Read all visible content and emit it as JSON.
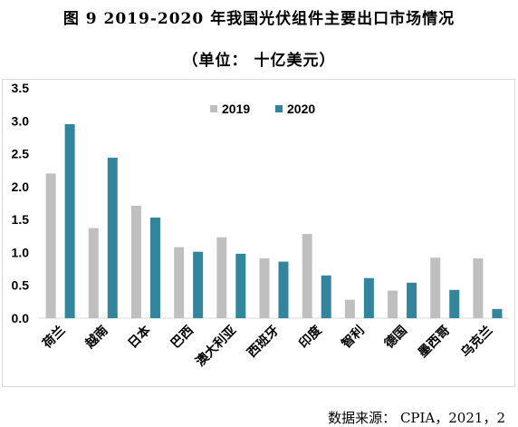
{
  "title": "图 9  2019-2020 年我国光伏组件主要出口市场情况",
  "subtitle": "（单位： 十亿美元）",
  "source": "数据来源： CPIA，2021，2",
  "colors": {
    "s2019": "#bfbfbf",
    "s2020": "#31859c",
    "axis": "#d9d9d9"
  },
  "chart_data": {
    "type": "bar",
    "title": "图 9  2019-2020 年我国光伏组件主要出口市场情况",
    "subtitle": "（单位： 十亿美元）",
    "xlabel": "",
    "ylabel": "",
    "ylim": [
      0,
      3.5
    ],
    "yticks": [
      "0.0",
      "0.5",
      "1.0",
      "1.5",
      "2.0",
      "2.5",
      "3.0",
      "3.5"
    ],
    "grid": false,
    "legend": "top-center",
    "categories": [
      "荷兰",
      "越南",
      "日本",
      "巴西",
      "澳大利亚",
      "西班牙",
      "印度",
      "智利",
      "德国",
      "墨西哥",
      "乌克兰"
    ],
    "series": [
      {
        "name": "2019",
        "values": [
          2.2,
          1.37,
          1.71,
          1.08,
          1.23,
          0.91,
          1.28,
          0.28,
          0.42,
          0.92,
          0.91
        ]
      },
      {
        "name": "2020",
        "values": [
          2.95,
          2.44,
          1.53,
          1.01,
          0.98,
          0.86,
          0.65,
          0.61,
          0.54,
          0.43,
          0.14
        ]
      }
    ]
  }
}
